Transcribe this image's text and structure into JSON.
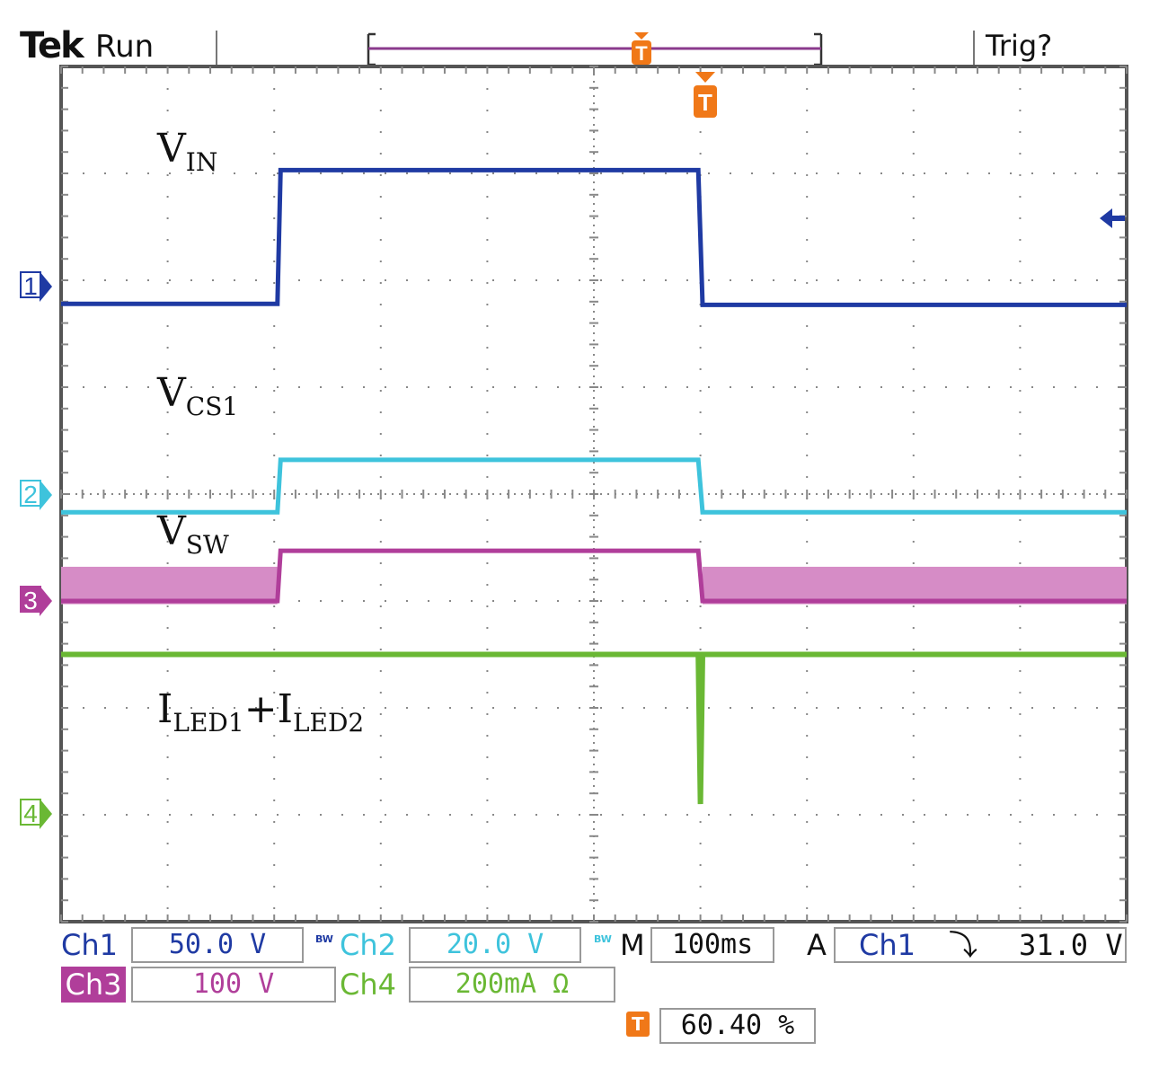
{
  "header": {
    "brand": "Tek",
    "status": "Run",
    "trigger_status": "Trig?"
  },
  "marker_letter": "T",
  "colors": {
    "ch1": "#1f3aa3",
    "ch2": "#3ec3dc",
    "ch3": "#b03e9a",
    "ch3_fill": "#d68cc6",
    "ch4": "#6ab834",
    "trigger": "#f07818",
    "grid": "#888888"
  },
  "chart_data": {
    "type": "line",
    "grid": {
      "h_div": 10,
      "v_div": 8,
      "grid_on": true
    },
    "x_range_div": [
      0,
      10
    ],
    "trigger_position_div": 6.0,
    "series": [
      {
        "name": "V",
        "sub": "IN",
        "channel": "1",
        "ground_div": 2.15,
        "points": [
          [
            0,
            2.22
          ],
          [
            2.03,
            2.22
          ],
          [
            2.06,
            0.97
          ],
          [
            5.98,
            0.97
          ],
          [
            6.02,
            2.23
          ],
          [
            10,
            2.23
          ]
        ]
      },
      {
        "name": "V",
        "sub": "CS1",
        "channel": "2",
        "ground_div": 4.17,
        "points": [
          [
            0,
            4.17
          ],
          [
            2.03,
            4.17
          ],
          [
            2.06,
            3.68
          ],
          [
            5.98,
            3.68
          ],
          [
            6.02,
            4.17
          ],
          [
            10,
            4.17
          ]
        ]
      },
      {
        "name": "V",
        "sub": "SW",
        "channel": "3",
        "ground_div": 5.0,
        "switching_band_div": [
          4.68,
          5.03
        ],
        "points": [
          [
            0,
            5.0
          ],
          [
            2.03,
            5.0
          ],
          [
            2.06,
            4.53
          ],
          [
            5.98,
            4.53
          ],
          [
            6.02,
            5.0
          ],
          [
            10,
            5.0
          ]
        ]
      },
      {
        "name": "I",
        "sub": "LED1",
        "name2": "I",
        "sub2": "LED2",
        "plus": "+",
        "channel": "4",
        "ground_div": 7.02,
        "points": [
          [
            0,
            5.5
          ],
          [
            5.98,
            5.5
          ],
          [
            6.0,
            6.9
          ],
          [
            6.02,
            5.5
          ],
          [
            10,
            5.5
          ]
        ]
      }
    ]
  },
  "footer": {
    "ch1": {
      "label": "Ch1",
      "value": "50.0 V",
      "bw": "BW"
    },
    "ch2": {
      "label": "Ch2",
      "value": "20.0 V",
      "bw": "BW"
    },
    "ch3": {
      "label": "Ch3",
      "value": "100 V"
    },
    "ch4": {
      "label": "Ch4",
      "value": "200mA Ω"
    },
    "timebase": {
      "label": "M",
      "value": "100ms"
    },
    "trigger": {
      "mode": "A",
      "source": "Ch1",
      "slope": "⤵",
      "level": "31.0 V"
    },
    "trigger_position": {
      "value": "60.40 %"
    }
  }
}
